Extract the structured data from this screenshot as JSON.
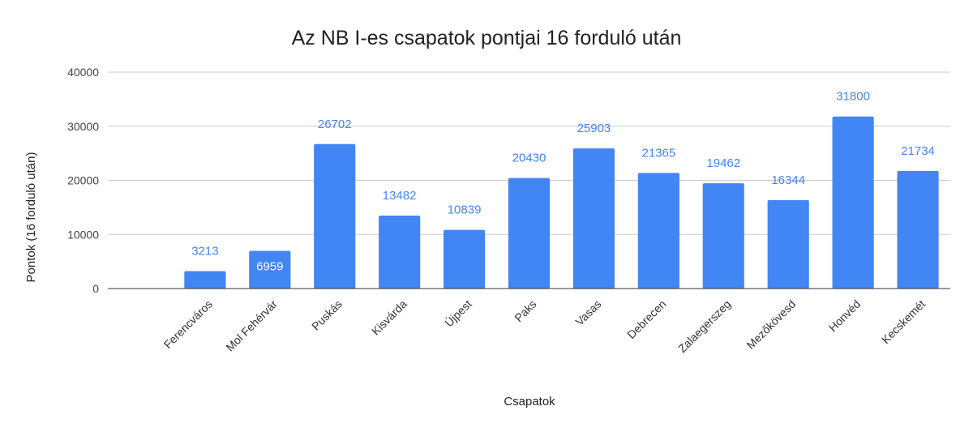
{
  "chart_data": {
    "type": "bar",
    "title": "Az NB I-es csapatok pontjai 16 forduló után",
    "xlabel": "Csapatok",
    "ylabel": "Pontok (16 forduló után)",
    "ylim": [
      0,
      40000
    ],
    "yticks": [
      "0",
      "10000",
      "20000",
      "30000",
      "40000"
    ],
    "grid": true,
    "legend": "none",
    "bar_color": "#4285f4",
    "label_color": "#4285f4",
    "label_inside_color": "#ffffff",
    "categories": [
      "",
      "Ferencváros",
      "Mol Fehérvár",
      "Puskás",
      "Kisvárda",
      "Újpest",
      "Paks",
      "Vasas",
      "Debrecen",
      "Zalaegerszeg",
      "Mezőkövesd",
      "Honvéd",
      "Kecskemét"
    ],
    "values": [
      null,
      3213,
      6959,
      26702,
      13482,
      10839,
      20430,
      25903,
      21365,
      19462,
      16344,
      31800,
      21734
    ],
    "data_labels": [
      "",
      "3213",
      "6959",
      "26702",
      "13482",
      "10839",
      "20430",
      "25903",
      "21365",
      "19462",
      "16344",
      "31800",
      "21734"
    ]
  }
}
